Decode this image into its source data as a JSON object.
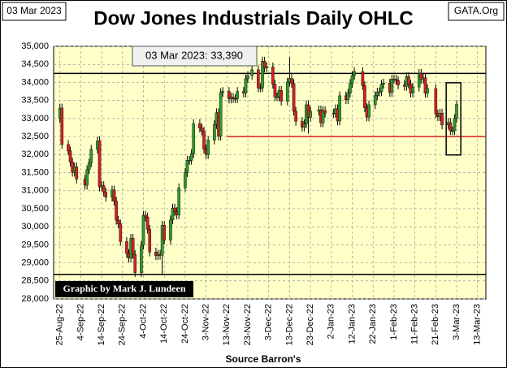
{
  "chart_data": {
    "type": "candlestick",
    "title": "Dow Jones Industrials Daily OHLC",
    "date_box": "03 Mar 2023",
    "site": "GATA.Org",
    "annotation": "03 Mar 2023:  33,390",
    "credit": "Graphic by Mark J. Lundeen",
    "source": "Source Barron's",
    "x": [
      "2022-08-25",
      "2022-08-26",
      "2022-08-29",
      "2022-08-30",
      "2022-08-31",
      "2022-09-01",
      "2022-09-02",
      "2022-09-06",
      "2022-09-07",
      "2022-09-08",
      "2022-09-09",
      "2022-09-12",
      "2022-09-13",
      "2022-09-14",
      "2022-09-15",
      "2022-09-16",
      "2022-09-19",
      "2022-09-20",
      "2022-09-21",
      "2022-09-22",
      "2022-09-23",
      "2022-09-26",
      "2022-09-27",
      "2022-09-28",
      "2022-09-29",
      "2022-09-30",
      "2022-10-03",
      "2022-10-04",
      "2022-10-05",
      "2022-10-06",
      "2022-10-07",
      "2022-10-10",
      "2022-10-11",
      "2022-10-12",
      "2022-10-13",
      "2022-10-14",
      "2022-10-17",
      "2022-10-18",
      "2022-10-19",
      "2022-10-20",
      "2022-10-21",
      "2022-10-24",
      "2022-10-25",
      "2022-10-26",
      "2022-10-27",
      "2022-10-28",
      "2022-10-31",
      "2022-11-01",
      "2022-11-02",
      "2022-11-03",
      "2022-11-04",
      "2022-11-07",
      "2022-11-08",
      "2022-11-09",
      "2022-11-10",
      "2022-11-11",
      "2022-11-14",
      "2022-11-15",
      "2022-11-16",
      "2022-11-17",
      "2022-11-18",
      "2022-11-21",
      "2022-11-22",
      "2022-11-23",
      "2022-11-25",
      "2022-11-28",
      "2022-11-29",
      "2022-11-30",
      "2022-12-01",
      "2022-12-02",
      "2022-12-05",
      "2022-12-06",
      "2022-12-07",
      "2022-12-08",
      "2022-12-09",
      "2022-12-12",
      "2022-12-13",
      "2022-12-14",
      "2022-12-15",
      "2022-12-16",
      "2022-12-19",
      "2022-12-20",
      "2022-12-21",
      "2022-12-22",
      "2022-12-23",
      "2022-12-27",
      "2022-12-28",
      "2022-12-29",
      "2022-12-30",
      "2023-01-03",
      "2023-01-04",
      "2023-01-05",
      "2023-01-06",
      "2023-01-09",
      "2023-01-10",
      "2023-01-11",
      "2023-01-12",
      "2023-01-13",
      "2023-01-17",
      "2023-01-18",
      "2023-01-19",
      "2023-01-20",
      "2023-01-23",
      "2023-01-24",
      "2023-01-25",
      "2023-01-26",
      "2023-01-27",
      "2023-01-30",
      "2023-01-31",
      "2023-02-01",
      "2023-02-02",
      "2023-02-03",
      "2023-02-06",
      "2023-02-07",
      "2023-02-08",
      "2023-02-09",
      "2023-02-10",
      "2023-02-13",
      "2023-02-14",
      "2023-02-15",
      "2023-02-16",
      "2023-02-17",
      "2023-02-21",
      "2023-02-22",
      "2023-02-23",
      "2023-02-24",
      "2023-02-27",
      "2023-02-28",
      "2023-03-01",
      "2023-03-02",
      "2023-03-03"
    ],
    "open": [
      33000,
      33290,
      32280,
      32100,
      31790,
      31510,
      31660,
      31320,
      31150,
      31580,
      31770,
      32150,
      32380,
      31100,
      31140,
      30960,
      30820,
      31020,
      30710,
      30180,
      30080,
      29590,
      29260,
      29130,
      29680,
      29230,
      28730,
      29490,
      30320,
      30270,
      29930,
      29300,
      29200,
      29240,
      29210,
      30040,
      29630,
      30190,
      30520,
      30420,
      30330,
      31080,
      31500,
      31840,
      31840,
      32030,
      32860,
      32730,
      32650,
      32150,
      32000,
      32400,
      32830,
      33160,
      32510,
      33720,
      33750,
      33540,
      33590,
      33550,
      33550,
      33750,
      33700,
      34100,
      34190,
      34350,
      33850,
      33850,
      34590,
      34400,
      34430,
      33950,
      33600,
      33600,
      33780,
      33480,
      34010,
      34110,
      33970,
      33200,
      32920,
      32760,
      32850,
      33380,
      33030,
      33200,
      33240,
      32880,
      33220,
      33150,
      33140,
      33270,
      32930,
      33630,
      33520,
      33700,
      33970,
      34190,
      34300,
      33910,
      33300,
      33040,
      33380,
      33630,
      33730,
      33740,
      33950,
      33980,
      33720,
      34090,
      34090,
      34050,
      33930,
      33890,
      34160,
      33950,
      33700,
      33870,
      34250,
      34090,
      34130,
      33700,
      33830,
      33130,
      33050,
      33150,
      32820,
      32890,
      32660,
      32660,
      33000
    ],
    "high": [
      33410,
      33410,
      32400,
      32220,
      31910,
      31780,
      31780,
      31440,
      31700,
      31890,
      32270,
      32500,
      32500,
      31260,
      31260,
      31080,
      31140,
      31140,
      30830,
      30300,
      30200,
      29710,
      29380,
      29800,
      29800,
      29350,
      29610,
      30440,
      30440,
      30390,
      30050,
      29420,
      29360,
      29360,
      30160,
      30160,
      30310,
      30640,
      30640,
      30540,
      31200,
      31620,
      31960,
      31960,
      32150,
      32980,
      32980,
      32850,
      32770,
      32270,
      32520,
      32950,
      33280,
      33280,
      33840,
      33870,
      33870,
      33710,
      33710,
      33670,
      33870,
      33870,
      34220,
      34310,
      34470,
      34470,
      33970,
      34710,
      34710,
      34550,
      34550,
      34070,
      33720,
      33900,
      33900,
      34130,
      34700,
      34230,
      34090,
      33320,
      33040,
      32970,
      33500,
      33500,
      33320,
      33360,
      33360,
      33340,
      33340,
      33270,
      33390,
      33390,
      33750,
      33750,
      33820,
      34090,
      34310,
      34420,
      34420,
      34030,
      33420,
      33500,
      33750,
      33850,
      33860,
      34070,
      34100,
      34100,
      34210,
      34210,
      34210,
      34170,
      34050,
      34280,
      34280,
      34070,
      33990,
      34370,
      34370,
      34250,
      34250,
      33950,
      33950,
      33250,
      33270,
      33270,
      33010,
      33010,
      32780,
      33120,
      33510
    ],
    "low": [
      32880,
      32160,
      31980,
      31670,
      31390,
      31390,
      31200,
      31030,
      31030,
      31460,
      31650,
      32030,
      30980,
      30980,
      30840,
      30700,
      30700,
      30590,
      30060,
      29960,
      29470,
      29140,
      29010,
      29010,
      29110,
      28610,
      28610,
      29370,
      30150,
      29810,
      29180,
      29080,
      29080,
      29090,
      28660,
      29510,
      29510,
      30070,
      30300,
      30210,
      30210,
      30960,
      31380,
      31720,
      31720,
      31910,
      32610,
      32530,
      32030,
      31880,
      31880,
      32280,
      32710,
      32390,
      32390,
      33600,
      33420,
      33420,
      33430,
      33430,
      33430,
      33580,
      33580,
      33980,
      34070,
      33730,
      33730,
      33730,
      34280,
      34280,
      33830,
      33480,
      33480,
      33480,
      33360,
      33360,
      33890,
      33850,
      33080,
      32800,
      32640,
      32640,
      32730,
      32580,
      32910,
      33080,
      32760,
      32760,
      33030,
      33020,
      33020,
      32810,
      32810,
      33400,
      33400,
      33580,
      33850,
      34070,
      33790,
      33180,
      32920,
      32920,
      33260,
      33510,
      33610,
      33620,
      33830,
      33600,
      33600,
      33970,
      33930,
      33810,
      33770,
      33770,
      33830,
      33580,
      33580,
      33750,
      33970,
      33970,
      33580,
      33580,
      33010,
      32930,
      32930,
      32700,
      32700,
      32540,
      32540,
      32540,
      32880
    ],
    "close": [
      33290,
      32280,
      32100,
      31790,
      31510,
      31660,
      31320,
      31150,
      31580,
      31770,
      32150,
      32380,
      31100,
      31140,
      30960,
      30820,
      31020,
      30710,
      30180,
      30080,
      29590,
      29260,
      29130,
      29680,
      29230,
      28730,
      29490,
      30320,
      30270,
      29930,
      29300,
      29200,
      29240,
      29210,
      30040,
      29630,
      30190,
      30520,
      30420,
      30330,
      31080,
      31500,
      31840,
      31840,
      32030,
      32860,
      32730,
      32650,
      32150,
      32000,
      32400,
      32830,
      33160,
      32510,
      33720,
      33750,
      33540,
      33590,
      33550,
      33550,
      33750,
      33700,
      34100,
      34190,
      34350,
      33850,
      33850,
      34590,
      34400,
      34430,
      33950,
      33600,
      33600,
      33780,
      33480,
      34010,
      34110,
      33970,
      33200,
      32920,
      32760,
      32850,
      33380,
      33030,
      33200,
      33240,
      32880,
      33220,
      33150,
      33140,
      33270,
      32930,
      33630,
      33520,
      33700,
      33970,
      34190,
      34300,
      33910,
      33300,
      33040,
      33380,
      33630,
      33730,
      33740,
      33950,
      33980,
      33720,
      34090,
      34090,
      34050,
      33930,
      33890,
      34160,
      33950,
      33700,
      33870,
      34250,
      34090,
      34130,
      33700,
      33830,
      33130,
      33050,
      33150,
      32820,
      32890,
      32660,
      32660,
      33000,
      33390
    ],
    "up_color": "#2e9a2e",
    "down_color": "#d42020",
    "xlim": [
      "2022-08-22",
      "2023-03-17"
    ],
    "xticks": [
      {
        "value": "2022-08-25",
        "label": "25-Aug-22"
      },
      {
        "value": "2022-09-04",
        "label": "4-Sep-22"
      },
      {
        "value": "2022-09-14",
        "label": "14-Sep-22"
      },
      {
        "value": "2022-09-24",
        "label": "24-Sep-22"
      },
      {
        "value": "2022-10-04",
        "label": "4-Oct-22"
      },
      {
        "value": "2022-10-14",
        "label": "14-Oct-22"
      },
      {
        "value": "2022-10-24",
        "label": "24-Oct-22"
      },
      {
        "value": "2022-11-03",
        "label": "3-Nov-22"
      },
      {
        "value": "2022-11-13",
        "label": "13-Nov-22"
      },
      {
        "value": "2022-11-23",
        "label": "23-Nov-22"
      },
      {
        "value": "2022-12-03",
        "label": "3-Dec-22"
      },
      {
        "value": "2022-12-13",
        "label": "13-Dec-22"
      },
      {
        "value": "2022-12-23",
        "label": "23-Dec-22"
      },
      {
        "value": "2023-01-02",
        "label": "2-Jan-23"
      },
      {
        "value": "2023-01-12",
        "label": "12-Jan-23"
      },
      {
        "value": "2023-01-22",
        "label": "22-Jan-23"
      },
      {
        "value": "2023-02-01",
        "label": "1-Feb-23"
      },
      {
        "value": "2023-02-11",
        "label": "11-Feb-23"
      },
      {
        "value": "2023-02-21",
        "label": "21-Feb-23"
      },
      {
        "value": "2023-03-03",
        "label": "3-Mar-23"
      },
      {
        "value": "2023-03-13",
        "label": "13-Mar-23"
      }
    ],
    "ylim": [
      28000,
      35000
    ],
    "yticks": [
      {
        "value": 28000,
        "label": "28,000"
      },
      {
        "value": 28500,
        "label": "28,500"
      },
      {
        "value": 29000,
        "label": "29,000"
      },
      {
        "value": 29500,
        "label": "29,500"
      },
      {
        "value": 30000,
        "label": "30,000"
      },
      {
        "value": 30500,
        "label": "30,500"
      },
      {
        "value": 31000,
        "label": "31,000"
      },
      {
        "value": 31500,
        "label": "31,500"
      },
      {
        "value": 32000,
        "label": "32,000"
      },
      {
        "value": 32500,
        "label": "32,500"
      },
      {
        "value": 33000,
        "label": "33,000"
      },
      {
        "value": 33500,
        "label": "33,500"
      },
      {
        "value": 34000,
        "label": "34,000"
      },
      {
        "value": 34500,
        "label": "34,500"
      },
      {
        "value": 35000,
        "label": "35,000"
      }
    ],
    "grid": true,
    "hlines": [
      {
        "value": 34250,
        "color": "#000000"
      },
      {
        "value": 28680,
        "color": "#000000"
      },
      {
        "value": 32500,
        "color": "#d42020",
        "from": "2022-11-13"
      }
    ],
    "box": {
      "x": [
        "2023-02-26",
        "2023-03-05"
      ],
      "y": [
        31990,
        33990
      ]
    }
  }
}
